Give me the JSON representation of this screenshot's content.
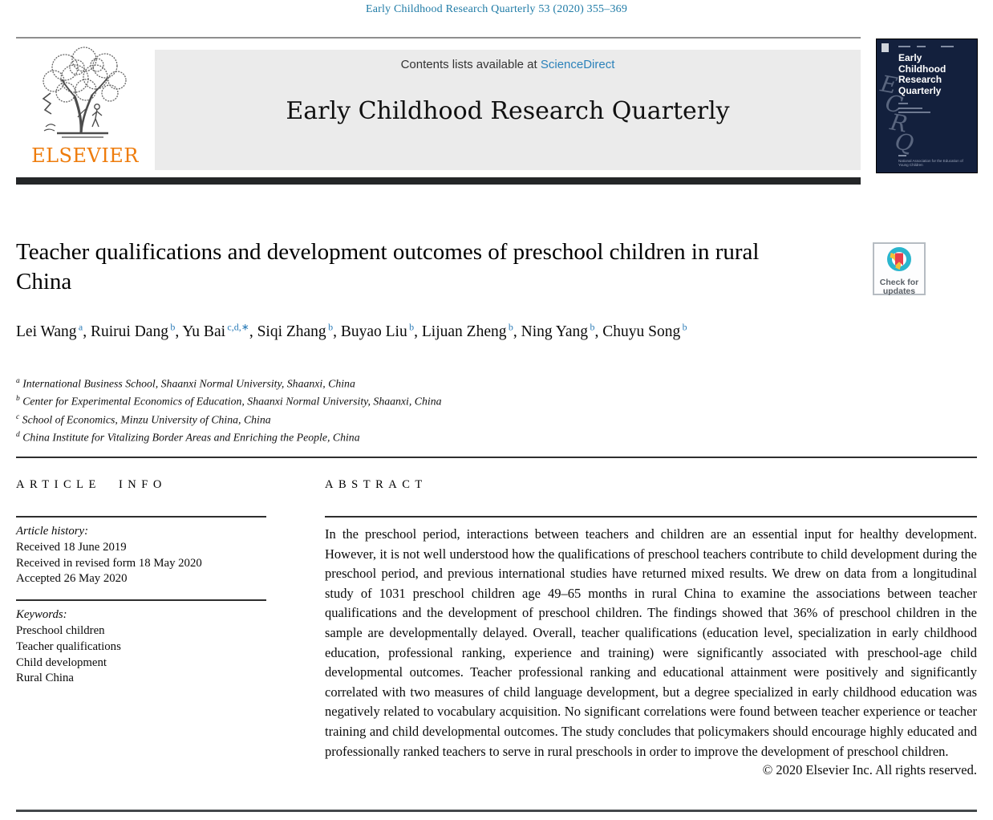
{
  "colors": {
    "teal_header": "#1f7ba6",
    "link_blue": "#2b82ba",
    "sup_blue": "#2b7cb8",
    "elsevier_orange": "#ee7c0c",
    "cover_navy": "#13203d"
  },
  "page": {
    "journal_citation": "Early Childhood Research Quarterly 53 (2020) 355–369"
  },
  "header": {
    "contents_line_prefix": "Contents lists available at ",
    "sciencedirect_link": "ScienceDirect",
    "journal_title": "Early Childhood Research Quarterly",
    "elsevier_wordmark": "ELSEVIER"
  },
  "cover": {
    "title": "Early Childhood Research Quarterly",
    "monogram": [
      "E",
      "C",
      "R",
      "Q"
    ],
    "association_line": "National Association for the Education of Young Children"
  },
  "badge": {
    "line1": "Check for",
    "line2": "updates"
  },
  "article": {
    "title": "Teacher qualifications and development outcomes of preschool children in rural China",
    "authors": [
      {
        "name": "Lei Wang",
        "sup": "a"
      },
      {
        "name": "Ruirui Dang",
        "sup": "b"
      },
      {
        "name": "Yu Bai",
        "sup": "c,d,∗"
      },
      {
        "name": "Siqi Zhang",
        "sup": "b"
      },
      {
        "name": "Buyao Liu",
        "sup": "b"
      },
      {
        "name": "Lijuan Zheng",
        "sup": "b"
      },
      {
        "name": "Ning Yang",
        "sup": "b"
      },
      {
        "name": "Chuyu Song",
        "sup": "b"
      }
    ],
    "affiliations": [
      {
        "sup": "a",
        "text": "International Business School, Shaanxi Normal University, Shaanxi, China"
      },
      {
        "sup": "b",
        "text": "Center for Experimental Economics of Education, Shaanxi Normal University, Shaanxi, China"
      },
      {
        "sup": "c",
        "text": "School of Economics, Minzu University of China, China"
      },
      {
        "sup": "d",
        "text": "China Institute for Vitalizing Border Areas and Enriching the People, China"
      }
    ]
  },
  "article_info": {
    "heading": "ARTICLE INFO",
    "history_label": "Article history:",
    "history": [
      "Received 18 June 2019",
      "Received in revised form 18 May 2020",
      "Accepted 26 May 2020"
    ],
    "keywords_label": "Keywords:",
    "keywords": [
      "Preschool children",
      "Teacher qualifications",
      "Child development",
      "Rural China"
    ]
  },
  "abstract": {
    "heading": "ABSTRACT",
    "text": "In the preschool period, interactions between teachers and children are an essential input for healthy development. However, it is not well understood how the qualifications of preschool teachers contribute to child development during the preschool period, and previous international studies have returned mixed results. We drew on data from a longitudinal study of 1031 preschool children age 49–65 months in rural China to examine the associations between teacher qualifications and the development of preschool children. The findings showed that 36% of preschool children in the sample are developmentally delayed. Overall, teacher qualifications (education level, specialization in early childhood education, professional ranking, experience and training) were significantly associated with preschool-age child developmental outcomes. Teacher professional ranking and educational attainment were positively and significantly correlated with two measures of child language development, but a degree specialized in early childhood education was negatively related to vocabulary acquisition. No significant correlations were found between teacher experience or teacher training and child developmental outcomes. The study concludes that policymakers should encourage highly educated and professionally ranked teachers to serve in rural preschools in order to improve the development of preschool children.",
    "copyright": "© 2020 Elsevier Inc. All rights reserved."
  }
}
